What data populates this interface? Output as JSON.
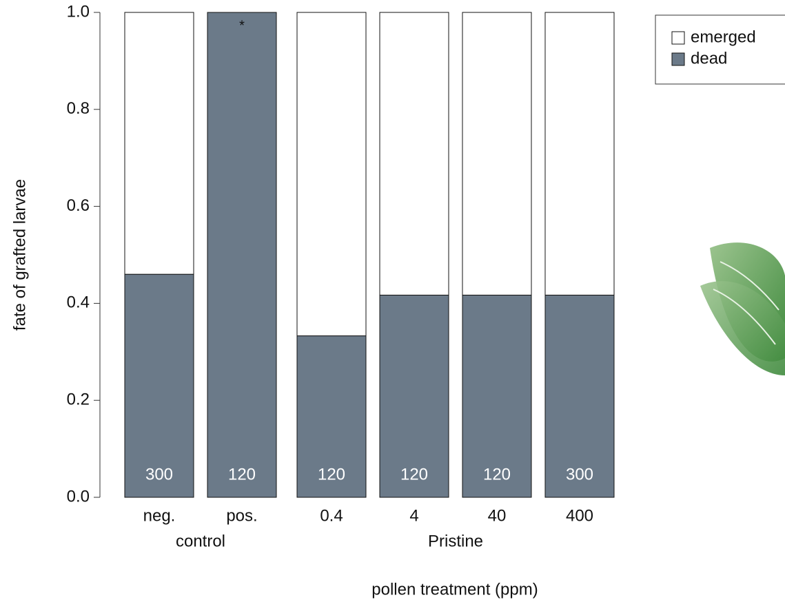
{
  "chart_data": {
    "type": "bar",
    "stacked": true,
    "x_label": "pollen treatment (ppm)",
    "y_label": "fate of grafted larvae",
    "categories": [
      "neg.",
      "pos.",
      "0.4",
      "4",
      "40",
      "400"
    ],
    "group_labels": [
      "control",
      "Pristine"
    ],
    "series": [
      {
        "name": "dead",
        "color": "#6b7a89",
        "values": [
          0.46,
          1.0,
          0.333,
          0.417,
          0.417,
          0.417
        ]
      },
      {
        "name": "emerged",
        "color": "#ffffff",
        "values": [
          0.54,
          0,
          0.667,
          0.583,
          0.583,
          0.583
        ]
      }
    ],
    "sample_sizes": [
      300,
      120,
      120,
      120,
      120,
      300
    ],
    "significance_marks": [
      null,
      "*",
      null,
      null,
      null,
      null
    ],
    "ylim": [
      0,
      1
    ],
    "yticks": [
      {
        "value": 0,
        "label": "0.0"
      },
      0.2,
      0.4,
      0.6,
      0.8,
      {
        "value": 1,
        "label": "1.0"
      }
    ],
    "legend": "top-right"
  }
}
